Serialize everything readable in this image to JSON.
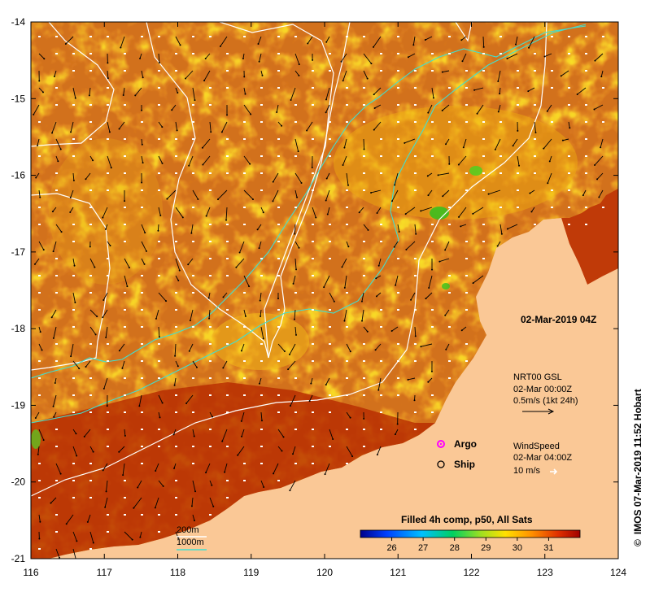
{
  "map": {
    "lon_range": [
      116,
      124
    ],
    "lat_range": [
      -21,
      -14
    ],
    "x_ticks": [
      "116",
      "117",
      "118",
      "119",
      "120",
      "121",
      "122",
      "123",
      "124"
    ],
    "y_ticks": [
      "-14",
      "-15",
      "-16",
      "-17",
      "-18",
      "-19",
      "-20",
      "-21"
    ],
    "ocean_color": "#d2711c",
    "land_color": "#fac896"
  },
  "timestamp": "02-Mar-2019 04Z",
  "current_legend": {
    "title": "NRT00 GSL",
    "time": "02-Mar 00:00Z",
    "scale": "0.5m/s (1kt 24h)"
  },
  "markers": {
    "argo": {
      "label": "Argo",
      "color": "#ff00ff"
    },
    "ship": {
      "label": "Ship"
    }
  },
  "wind_legend": {
    "title": "WindSpeed",
    "time": "02-Mar 04:00Z",
    "scale": "10 m/s"
  },
  "colorbar": {
    "title": "Filled 4h comp, p50, All Sats",
    "min": 25,
    "max": 32,
    "ticks": [
      "26",
      "27",
      "28",
      "29",
      "30",
      "31"
    ]
  },
  "isobaths": {
    "a": {
      "label": "200m",
      "color": "#ffffff"
    },
    "b": {
      "label": "1000m",
      "color": "#40e0d0"
    }
  },
  "credit": "IMOS 07-Mar-2019 11:52 Hobart",
  "credit_symbol": "©"
}
